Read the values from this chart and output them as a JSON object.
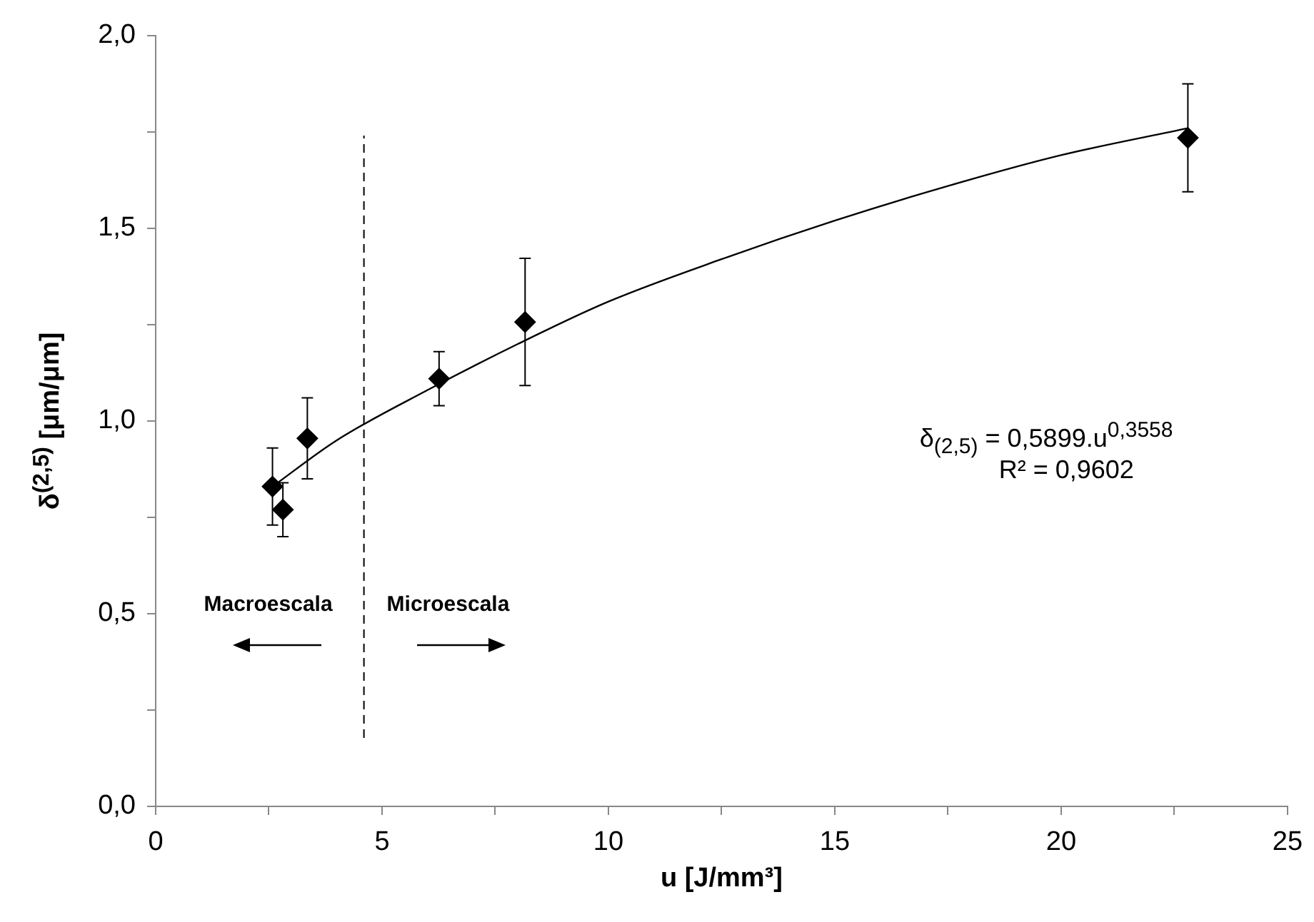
{
  "chart_data": {
    "type": "scatter",
    "xlabel": "u [J/mm³]",
    "ylabel": "δ$^{(2,5)}$ [μm/μm]",
    "annotations": [
      "Macroescala",
      "Microescala",
      "δ$_{(2,5)}$ = 0,5899.u$^{0,3558}$",
      "R² = 0,9602"
    ],
    "series": [
      {
        "type": "scatter",
        "color": "#000000",
        "marker": "diamond",
        "x": [
          2.58,
          2.81,
          3.35,
          6.26,
          8.16,
          22.8
        ],
        "values": [
          0.83,
          0.77,
          0.955,
          1.11,
          1.257,
          1.735
        ],
        "errors": [
          0.1,
          0.07,
          0.105,
          0.07,
          0.165,
          0.14
        ]
      },
      {
        "type": "line",
        "color": "#000000",
        "marker": "none",
        "line_style": "solid",
        "x": [
          2.58,
          4,
          6,
          8,
          10,
          12.5,
          15,
          17.5,
          20,
          22.8
        ],
        "values": [
          0.83,
          0.95,
          1.08,
          1.2,
          1.31,
          1.42,
          1.52,
          1.61,
          1.69,
          1.76
        ]
      }
    ],
    "ref_lines": [
      {
        "axis": "x",
        "value": 4.6,
        "line_style": "dashed",
        "color": "#000000"
      }
    ],
    "xlim": [
      0,
      25
    ],
    "xticks": [
      0,
      {
        "value": 2.5,
        "label": null
      },
      5,
      {
        "value": 7.5,
        "label": null
      },
      10,
      {
        "value": 12.5,
        "label": null
      },
      15,
      {
        "value": 17.5,
        "label": null
      },
      20,
      {
        "value": 22.5,
        "label": null
      },
      25
    ],
    "ylim": [
      0,
      2
    ],
    "yticks": [
      {
        "value": 0,
        "label": "0,0"
      },
      {
        "value": 0.25,
        "label": null
      },
      {
        "value": 0.5,
        "label": "0,5"
      },
      {
        "value": 0.75,
        "label": null
      },
      {
        "value": 1,
        "label": "1,0"
      },
      {
        "value": 1.25,
        "label": null
      },
      {
        "value": 1.5,
        "label": "1,5"
      },
      {
        "value": 1.75,
        "label": null
      },
      {
        "value": 2,
        "label": "2,0"
      }
    ],
    "grid": false,
    "legend": false
  }
}
